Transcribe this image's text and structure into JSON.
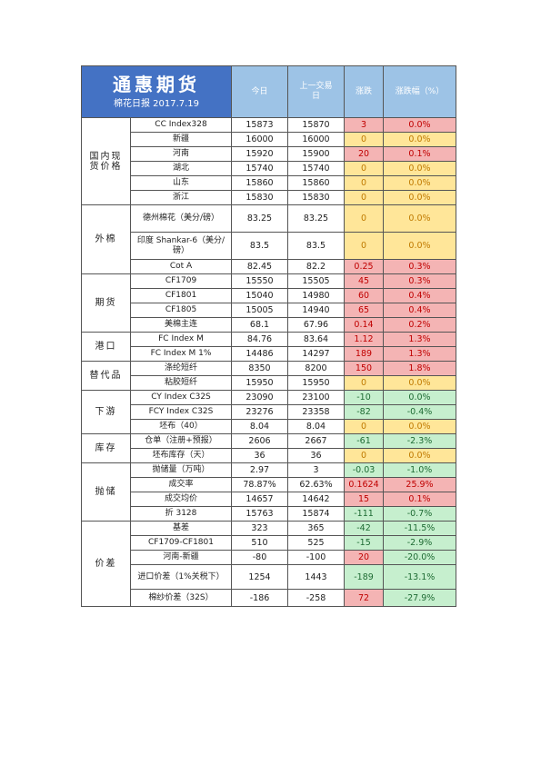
{
  "brand": {
    "title": "通惠期货",
    "subtitle": "棉花日报 2017.7.19"
  },
  "header": {
    "today": "今日",
    "prev": "上一交易日",
    "change": "涨跌",
    "pct": "涨跌幅（%）"
  },
  "colors": {
    "brand_bg": "#4472c4",
    "header_bg": "#9dc3e6",
    "up": "#f4b4b4",
    "flat": "#ffe699",
    "down": "#c6efce"
  },
  "groups": [
    {
      "name": "国内现货价格",
      "rows": [
        {
          "name": "CC Index328",
          "today": "15873",
          "prev": "15870",
          "change": "3",
          "pct": "0.0%",
          "status": "red"
        },
        {
          "name": "新疆",
          "today": "16000",
          "prev": "16000",
          "change": "0",
          "pct": "0.0%",
          "status": "yel"
        },
        {
          "name": "河南",
          "today": "15920",
          "prev": "15900",
          "change": "20",
          "pct": "0.1%",
          "status": "red"
        },
        {
          "name": "湖北",
          "today": "15740",
          "prev": "15740",
          "change": "0",
          "pct": "0.0%",
          "status": "yel"
        },
        {
          "name": "山东",
          "today": "15860",
          "prev": "15860",
          "change": "0",
          "pct": "0.0%",
          "status": "yel"
        },
        {
          "name": "浙江",
          "today": "15830",
          "prev": "15830",
          "change": "0",
          "pct": "0.0%",
          "status": "yel"
        }
      ]
    },
    {
      "name": "外棉",
      "rows": [
        {
          "name": "德州棉花（美分/磅）",
          "today": "83.25",
          "prev": "83.25",
          "change": "0",
          "pct": "0.0%",
          "status": "yel",
          "tall": 30
        },
        {
          "name": "印度 Shankar-6（美分/磅）",
          "today": "83.5",
          "prev": "83.5",
          "change": "0",
          "pct": "0.0%",
          "status": "yel",
          "tall": 30
        },
        {
          "name": "Cot A",
          "today": "82.45",
          "prev": "82.2",
          "change": "0.25",
          "pct": "0.3%",
          "status": "red"
        }
      ]
    },
    {
      "name": "期货",
      "rows": [
        {
          "name": "CF1709",
          "today": "15550",
          "prev": "15505",
          "change": "45",
          "pct": "0.3%",
          "status": "red"
        },
        {
          "name": "CF1801",
          "today": "15040",
          "prev": "14980",
          "change": "60",
          "pct": "0.4%",
          "status": "red"
        },
        {
          "name": "CF1805",
          "today": "15005",
          "prev": "14940",
          "change": "65",
          "pct": "0.4%",
          "status": "red"
        },
        {
          "name": "美棉主连",
          "today": "68.1",
          "prev": "67.96",
          "change": "0.14",
          "pct": "0.2%",
          "status": "red"
        }
      ]
    },
    {
      "name": "港口",
      "rows": [
        {
          "name": "FC Index M",
          "today": "84.76",
          "prev": "83.64",
          "change": "1.12",
          "pct": "1.3%",
          "status": "red"
        },
        {
          "name": "FC Index M 1%",
          "today": "14486",
          "prev": "14297",
          "change": "189",
          "pct": "1.3%",
          "status": "red"
        }
      ]
    },
    {
      "name": "替代品",
      "rows": [
        {
          "name": "涤纶短纤",
          "today": "8350",
          "prev": "8200",
          "change": "150",
          "pct": "1.8%",
          "status": "red"
        },
        {
          "name": "粘胶短纤",
          "today": "15950",
          "prev": "15950",
          "change": "0",
          "pct": "0.0%",
          "status": "yel"
        }
      ]
    },
    {
      "name": "下游",
      "rows": [
        {
          "name": "CY Index C32S",
          "today": "23090",
          "prev": "23100",
          "change": "-10",
          "pct": "0.0%",
          "status": "grn"
        },
        {
          "name": "FCY Index C32S",
          "today": "23276",
          "prev": "23358",
          "change": "-82",
          "pct": "-0.4%",
          "status": "grn"
        },
        {
          "name": "坯布（40）",
          "today": "8.04",
          "prev": "8.04",
          "change": "0",
          "pct": "0.0%",
          "status": "yel"
        }
      ]
    },
    {
      "name": "库存",
      "rows": [
        {
          "name": "仓单（注册+预报）",
          "today": "2606",
          "prev": "2667",
          "change": "-61",
          "pct": "-2.3%",
          "status": "grn"
        },
        {
          "name": "坯布库存（天）",
          "today": "36",
          "prev": "36",
          "change": "0",
          "pct": "0.0%",
          "status": "yel"
        }
      ]
    },
    {
      "name": "抛储",
      "rows": [
        {
          "name": "抛储量（万吨）",
          "today": "2.97",
          "prev": "3",
          "change": "-0.03",
          "pct": "-1.0%",
          "status": "grn"
        },
        {
          "name": "成交率",
          "today": "78.87%",
          "prev": "62.63%",
          "change": "0.1624",
          "pct": "25.9%",
          "status": "red"
        },
        {
          "name": "成交均价",
          "today": "14657",
          "prev": "14642",
          "change": "15",
          "pct": "0.1%",
          "status": "red"
        },
        {
          "name": "折 3128",
          "today": "15763",
          "prev": "15874",
          "change": "-111",
          "pct": "-0.7%",
          "status": "grn"
        }
      ]
    },
    {
      "name": "价差",
      "rows": [
        {
          "name": "基差",
          "today": "323",
          "prev": "365",
          "change": "-42",
          "pct": "-11.5%",
          "status": "grn"
        },
        {
          "name": "CF1709-CF1801",
          "today": "510",
          "prev": "525",
          "change": "-15",
          "pct": "-2.9%",
          "status": "grn"
        },
        {
          "name": "河南-新疆",
          "today": "-80",
          "prev": "-100",
          "change": "20",
          "pct": "-20.0%",
          "status": "red",
          "pct_status": "grn"
        },
        {
          "name": "进口价差（1%关税下）",
          "today": "1254",
          "prev": "1443",
          "change": "-189",
          "pct": "-13.1%",
          "status": "grn",
          "tall": 27
        },
        {
          "name": "棉纱价差（32S）",
          "today": "-186",
          "prev": "-258",
          "change": "72",
          "pct": "-27.9%",
          "status": "red",
          "pct_status": "grn",
          "tall": 19
        }
      ]
    }
  ]
}
